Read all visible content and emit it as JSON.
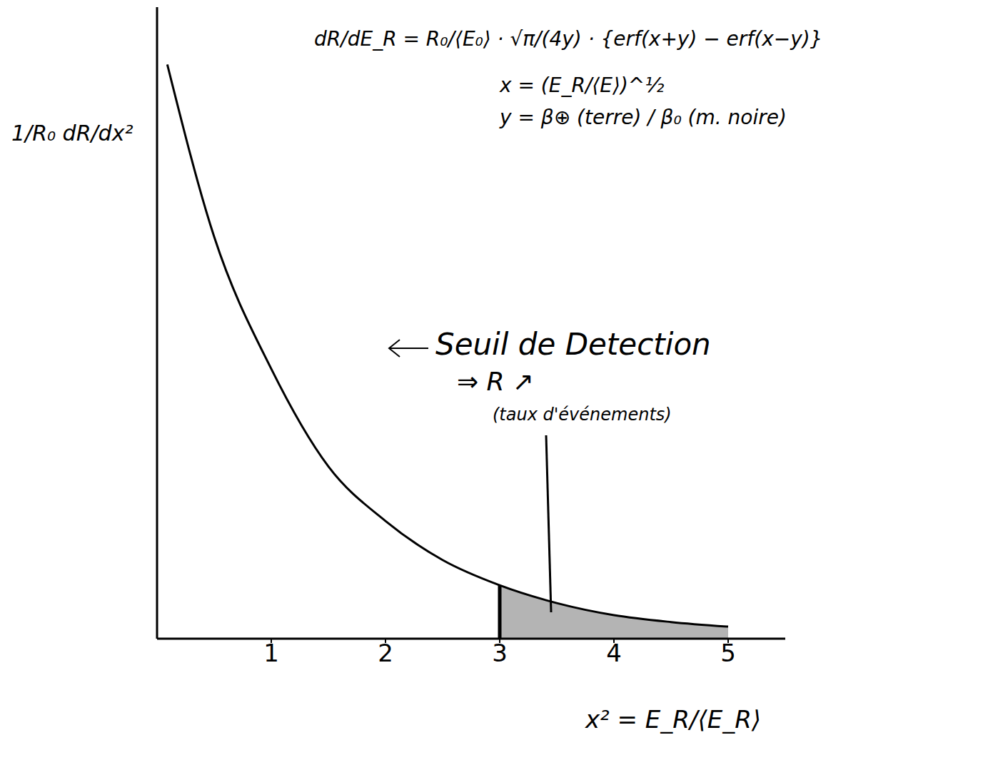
{
  "chart_data": {
    "type": "line",
    "x": [
      0.09,
      0.5,
      1,
      1.5,
      2,
      2.5,
      3,
      3.5,
      4,
      4.5,
      5
    ],
    "values": [
      1.0,
      0.7,
      0.47,
      0.3,
      0.205,
      0.137,
      0.093,
      0.062,
      0.041,
      0.029,
      0.021
    ],
    "color": "#000000",
    "xlim": [
      0,
      5.5
    ],
    "xticks": [
      1,
      2,
      3,
      4,
      5
    ],
    "ylim": [
      0,
      1.1
    ],
    "yticks": [],
    "tick_labels": "x",
    "grid": false,
    "x_label": "x² = E_R/⟨E_R⟩",
    "y_label": "1/R₀ dR/dx²",
    "threshold": 3,
    "annotations": {
      "formula": "dR/dE_R = R₀/⟨E₀⟩ · √π/(4y) · {erf(x+y) − erf(x−y)}",
      "x_def": "x = (E_R/⟨E⟩)^½",
      "y_def": "y = β⊕ (terre) / β₀ (m. noire)",
      "threshold_label": "Seuil de Detection",
      "threshold_note": "⇒ R ↗",
      "threshold_note2": "(taux d'événements)"
    }
  }
}
